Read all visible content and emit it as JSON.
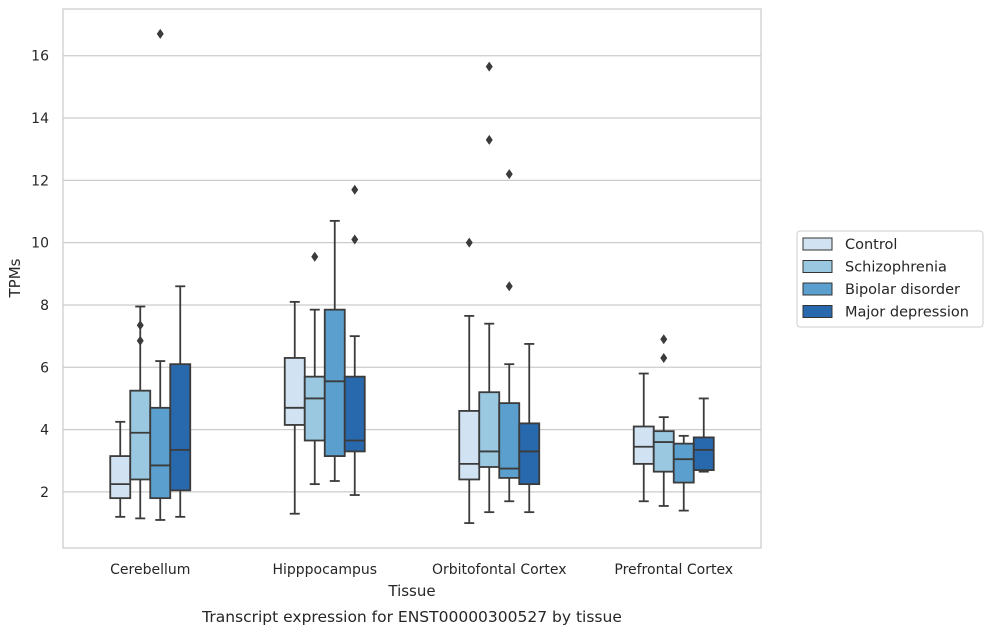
{
  "chart_data": {
    "type": "boxplot",
    "title": "",
    "caption": "Transcript expression for ENST00000300527 by tissue",
    "xlabel": "Tissue",
    "ylabel": "TPMs",
    "ylim": [
      0.2,
      17.5
    ],
    "yticks": [
      2,
      4,
      6,
      8,
      10,
      12,
      14,
      16
    ],
    "grid": "horizontal",
    "legend_position": "right",
    "categories": [
      "Cerebellum",
      "Hipppocampus",
      "Orbitofontal Cortex",
      "Prefrontal Cortex"
    ],
    "series": [
      {
        "name": "Control",
        "color": "#d1e2f2",
        "boxes": [
          {
            "whislo": 1.2,
            "q1": 1.8,
            "med": 2.25,
            "q3": 3.15,
            "whishi": 4.25,
            "fliers": []
          },
          {
            "whislo": 1.3,
            "q1": 4.15,
            "med": 4.7,
            "q3": 6.3,
            "whishi": 8.1,
            "fliers": []
          },
          {
            "whislo": 1.0,
            "q1": 2.4,
            "med": 2.9,
            "q3": 4.6,
            "whishi": 7.65,
            "fliers": [
              10.0
            ]
          },
          {
            "whislo": 1.7,
            "q1": 2.9,
            "med": 3.45,
            "q3": 4.1,
            "whishi": 5.8,
            "fliers": []
          }
        ]
      },
      {
        "name": "Schizophrenia",
        "color": "#9ac8e0",
        "boxes": [
          {
            "whislo": 1.15,
            "q1": 2.4,
            "med": 3.9,
            "q3": 5.25,
            "whishi": 7.95,
            "fliers": [
              6.85,
              7.35
            ]
          },
          {
            "whislo": 2.25,
            "q1": 3.65,
            "med": 5.0,
            "q3": 5.7,
            "whishi": 7.85,
            "fliers": [
              9.55
            ]
          },
          {
            "whislo": 1.35,
            "q1": 2.8,
            "med": 3.3,
            "q3": 5.2,
            "whishi": 7.4,
            "fliers": [
              13.3,
              15.65
            ]
          },
          {
            "whislo": 1.55,
            "q1": 2.65,
            "med": 3.6,
            "q3": 3.95,
            "whishi": 4.4,
            "fliers": [
              6.3,
              6.9
            ]
          }
        ]
      },
      {
        "name": "Bipolar disorder",
        "color": "#5a9fcd",
        "boxes": [
          {
            "whislo": 1.1,
            "q1": 1.8,
            "med": 2.85,
            "q3": 4.7,
            "whishi": 6.2,
            "fliers": [
              16.7
            ]
          },
          {
            "whislo": 2.35,
            "q1": 3.15,
            "med": 5.55,
            "q3": 7.85,
            "whishi": 10.7,
            "fliers": []
          },
          {
            "whislo": 1.7,
            "q1": 2.45,
            "med": 2.75,
            "q3": 4.85,
            "whishi": 6.1,
            "fliers": [
              8.6,
              12.2
            ]
          },
          {
            "whislo": 1.4,
            "q1": 2.3,
            "med": 3.05,
            "q3": 3.55,
            "whishi": 3.8,
            "fliers": []
          }
        ]
      },
      {
        "name": "Major depression",
        "color": "#2868ac",
        "boxes": [
          {
            "whislo": 1.2,
            "q1": 2.05,
            "med": 3.35,
            "q3": 6.1,
            "whishi": 8.6,
            "fliers": []
          },
          {
            "whislo": 1.9,
            "q1": 3.3,
            "med": 3.65,
            "q3": 5.7,
            "whishi": 7.0,
            "fliers": [
              10.1,
              11.7
            ]
          },
          {
            "whislo": 1.35,
            "q1": 2.25,
            "med": 3.3,
            "q3": 4.2,
            "whishi": 6.75,
            "fliers": []
          },
          {
            "whislo": 2.65,
            "q1": 2.7,
            "med": 3.35,
            "q3": 3.75,
            "whishi": 5.0,
            "fliers": []
          }
        ]
      }
    ]
  }
}
